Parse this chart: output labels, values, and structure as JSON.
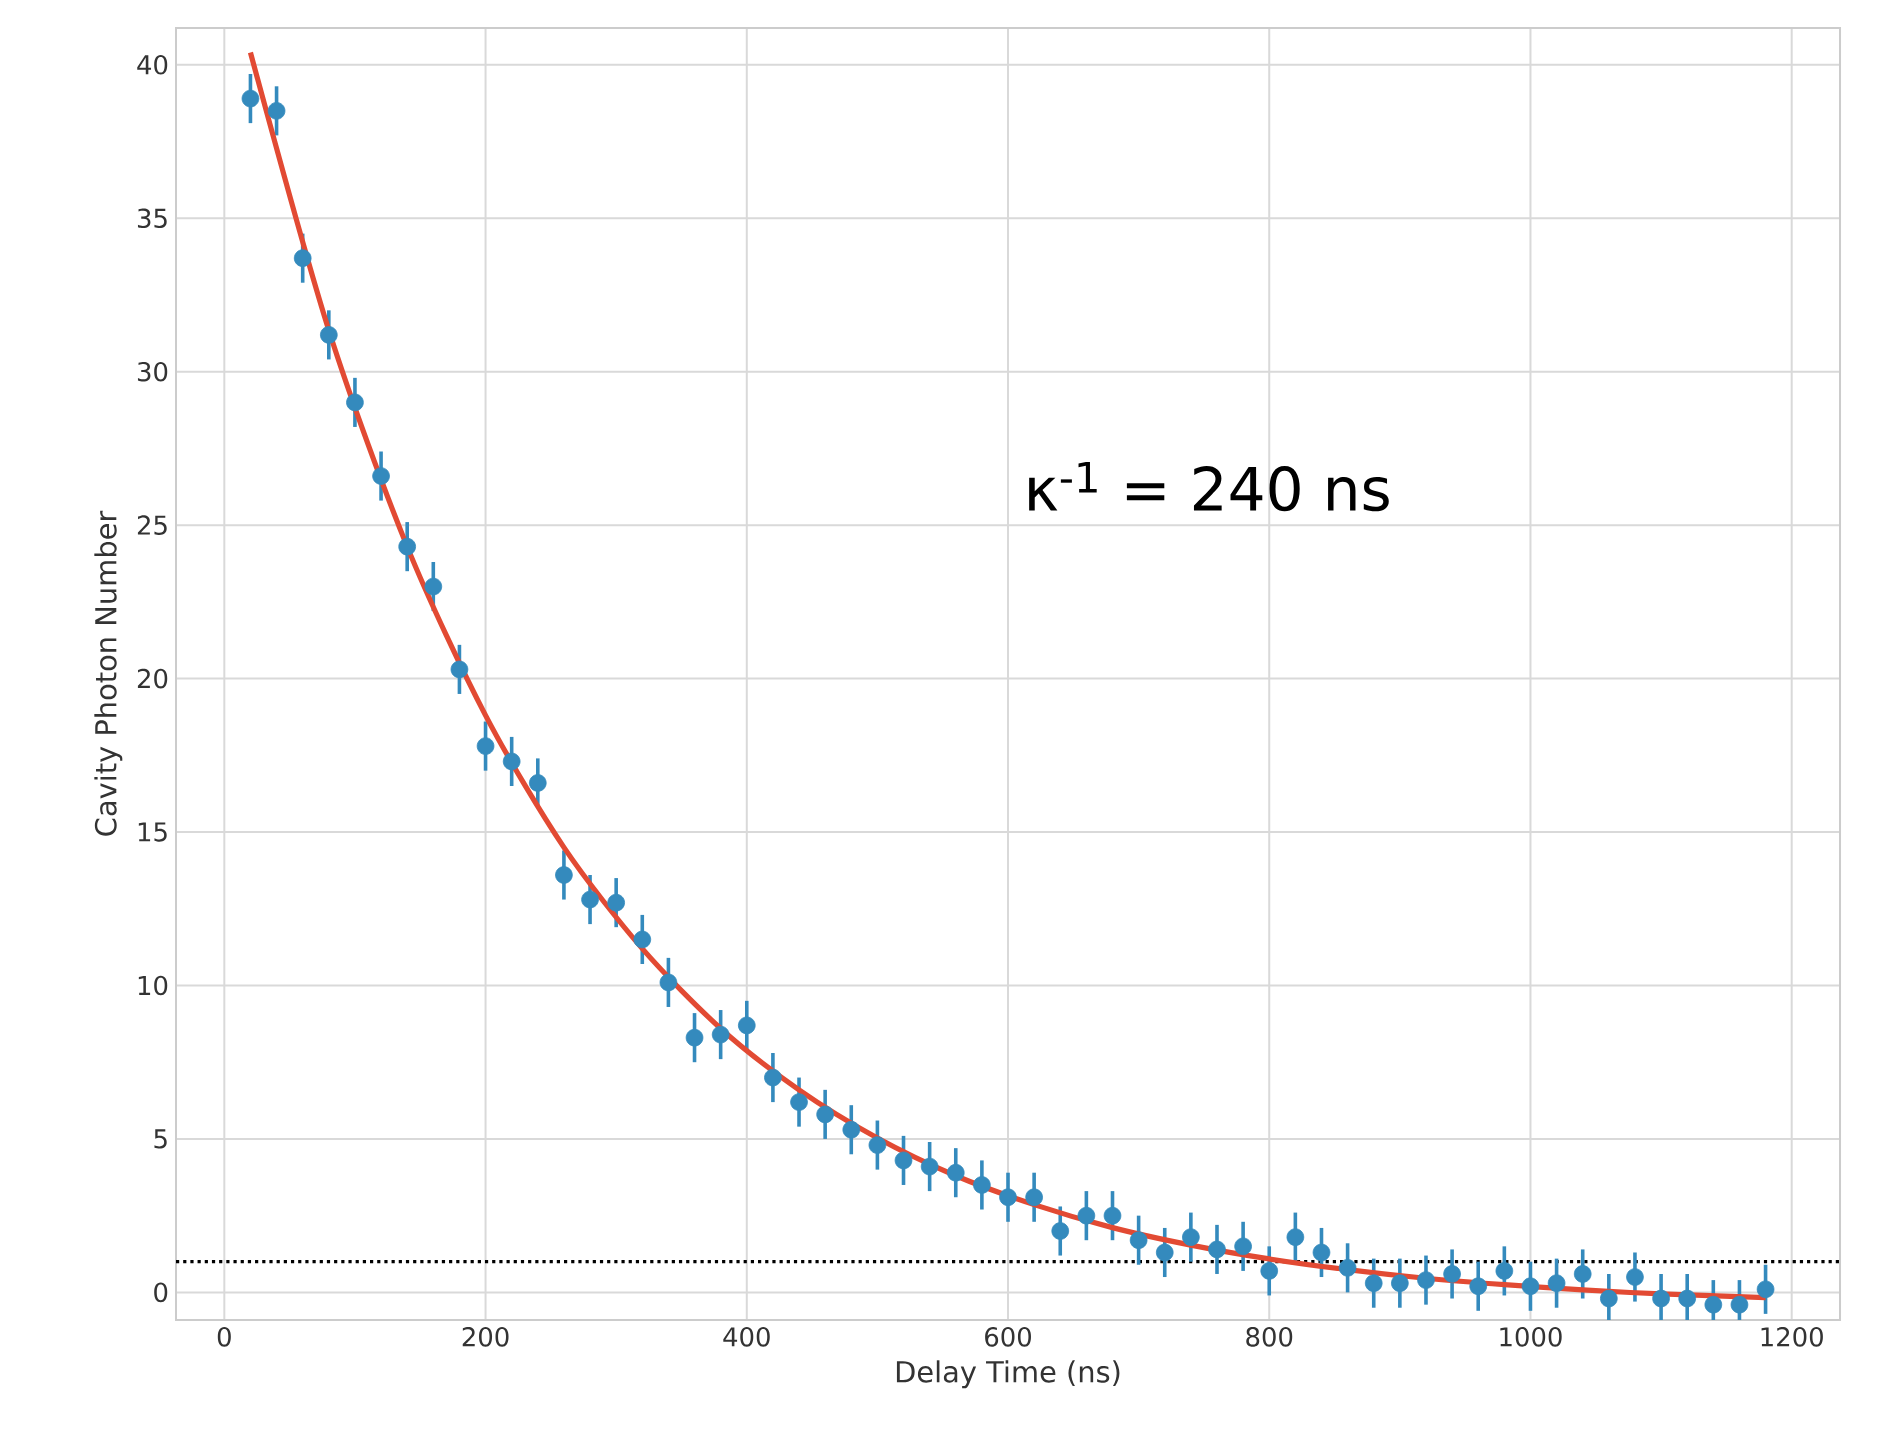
{
  "chart_data": {
    "type": "scatter",
    "xlabel": "Delay Time (ns)",
    "ylabel": "Cavity Photon Number",
    "annotations": [
      "κ$^{-1}$ = 240 ns"
    ],
    "xlim": [
      -37,
      1237
    ],
    "ylim": [
      -0.9,
      41.2
    ],
    "xticks": [
      0,
      200,
      400,
      600,
      800,
      1000,
      1200
    ],
    "yticks": [
      0,
      5,
      10,
      15,
      20,
      25,
      30,
      35,
      40
    ],
    "grid": true,
    "marker": "circle",
    "ref_lines": [
      {
        "axis": "y",
        "value": 1,
        "color": "#000000",
        "line_style": "dotted"
      }
    ],
    "series": [
      {
        "color": "#348abd",
        "x": [
          20,
          40,
          60,
          80,
          100,
          120,
          140,
          160,
          180,
          200,
          220,
          240,
          260,
          280,
          300,
          320,
          340,
          360,
          380,
          400,
          420,
          440,
          460,
          480,
          500,
          520,
          540,
          560,
          580,
          600,
          620,
          640,
          660,
          680,
          700,
          720,
          740,
          760,
          780,
          800,
          820,
          840,
          860,
          880,
          900,
          920,
          940,
          960,
          980,
          1000,
          1020,
          1040,
          1060,
          1080,
          1100,
          1120,
          1140,
          1160,
          1180
        ],
        "values": [
          38.9,
          38.5,
          33.7,
          31.2,
          29.0,
          26.6,
          24.3,
          23.0,
          20.3,
          17.8,
          17.3,
          16.6,
          13.6,
          12.8,
          12.7,
          11.5,
          10.1,
          8.3,
          8.4,
          8.7,
          7.0,
          6.2,
          5.8,
          5.3,
          4.8,
          4.3,
          4.1,
          3.9,
          3.5,
          3.1,
          3.1,
          2.0,
          2.5,
          2.5,
          1.7,
          1.3,
          1.8,
          1.4,
          1.5,
          0.7,
          1.8,
          1.3,
          0.8,
          0.3,
          0.3,
          0.4,
          0.6,
          0.2,
          0.7,
          0.2,
          0.3,
          0.6,
          -0.2,
          0.5,
          -0.2,
          -0.2,
          -0.4,
          -0.4,
          0.1
        ],
        "errors": [
          0.8,
          0.8,
          0.8,
          0.8,
          0.8,
          0.8,
          0.8,
          0.8,
          0.8,
          0.8,
          0.8,
          0.8,
          0.8,
          0.8,
          0.8,
          0.8,
          0.8,
          0.8,
          0.8,
          0.8,
          0.8,
          0.8,
          0.8,
          0.8,
          0.8,
          0.8,
          0.8,
          0.8,
          0.8,
          0.8,
          0.8,
          0.8,
          0.8,
          0.8,
          0.8,
          0.8,
          0.8,
          0.8,
          0.8,
          0.8,
          0.8,
          0.8,
          0.8,
          0.8,
          0.8,
          0.8,
          0.8,
          0.8,
          0.8,
          0.8,
          0.8,
          0.8,
          0.8,
          0.8,
          0.8,
          0.8,
          0.8,
          0.8,
          0.8
        ]
      },
      {
        "type": "line",
        "marker": "none",
        "color": "#e24a33",
        "x": [
          20,
          80,
          140,
          200,
          260,
          320,
          380,
          440,
          500,
          560,
          620,
          680,
          740,
          800,
          860,
          920,
          980,
          1040,
          1100,
          1180
        ],
        "values": [
          40.4,
          31.35,
          24.3,
          18.8,
          14.5,
          11.2,
          8.6,
          6.6,
          5.03,
          3.8,
          2.86,
          2.11,
          1.54,
          1.09,
          0.74,
          0.46,
          0.25,
          0.08,
          -0.05,
          -0.17
        ]
      }
    ]
  }
}
